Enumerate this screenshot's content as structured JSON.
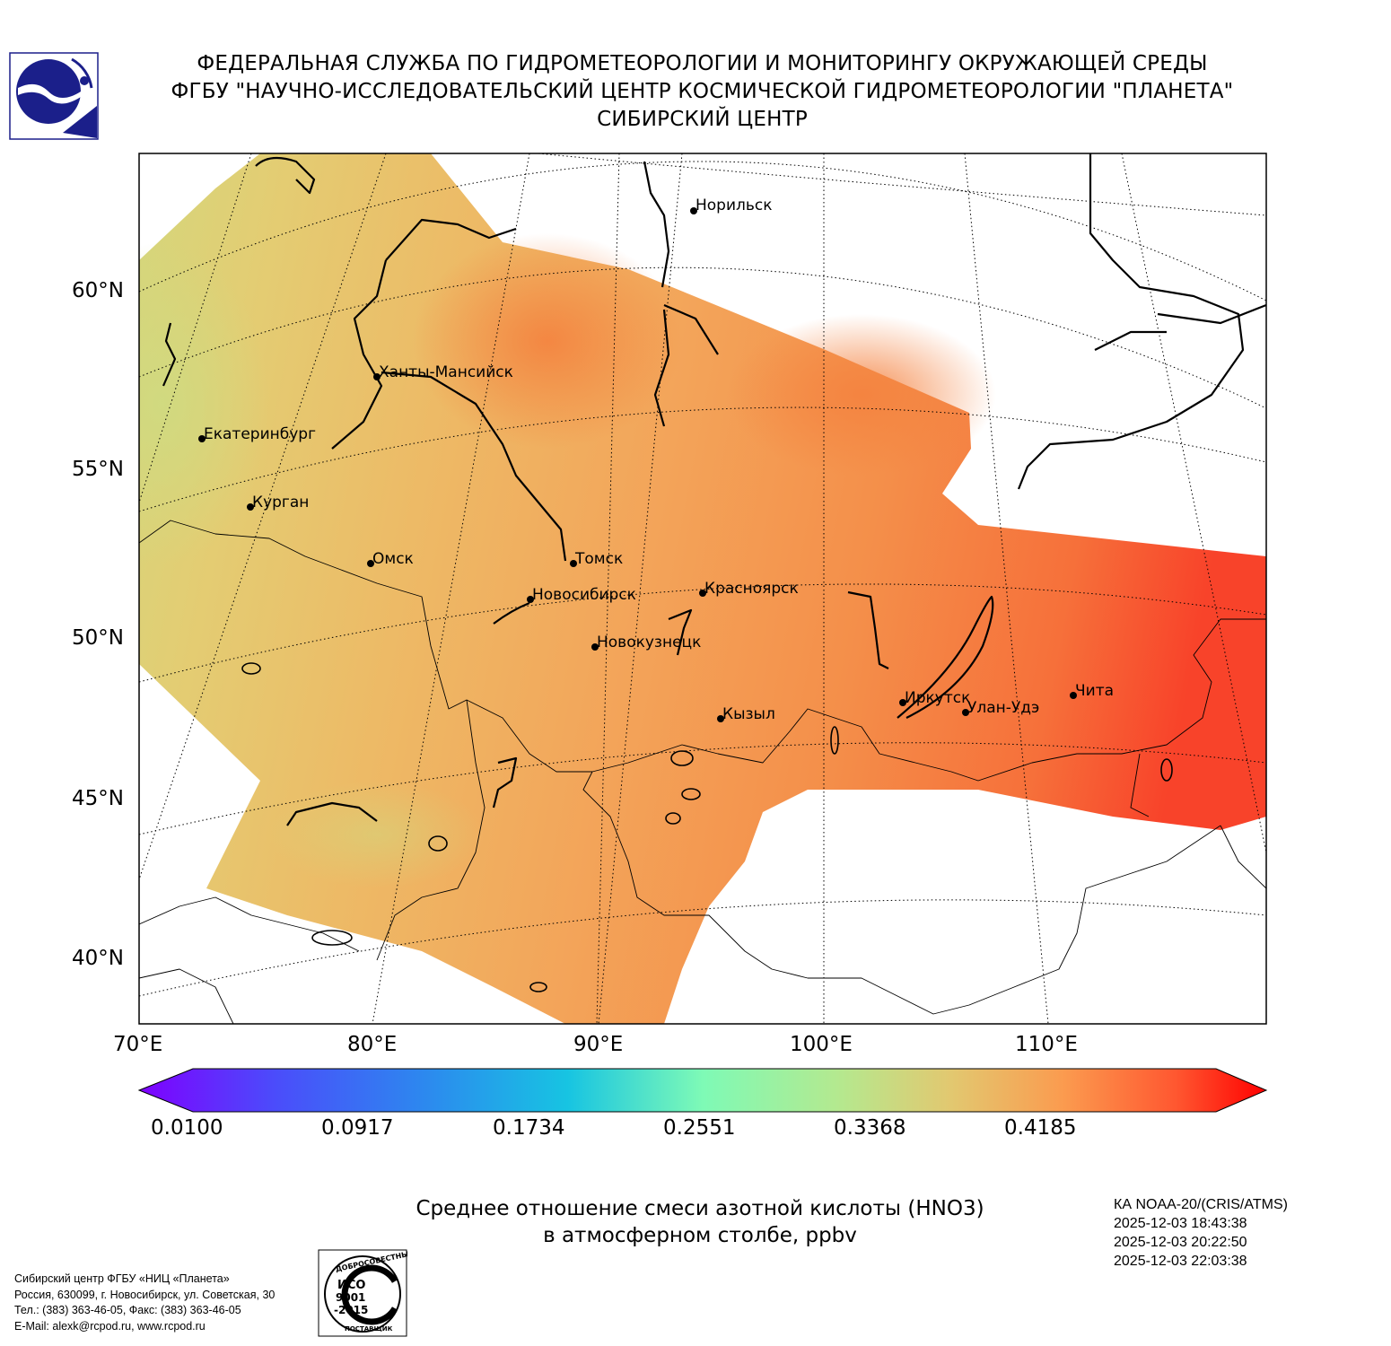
{
  "header": {
    "line1": "ФЕДЕРАЛЬНАЯ СЛУЖБА ПО ГИДРОМЕТЕОРОЛОГИИ И МОНИТОРИНГУ ОКРУЖАЮЩЕЙ СРЕДЫ",
    "line2": "ФГБУ \"НАУЧНО-ИССЛЕДОВАТЕЛЬСКИЙ ЦЕНТР КОСМИЧЕСКОЙ ГИДРОМЕТЕОРОЛОГИИ \"ПЛАНЕТА\"",
    "line3": "СИБИРСКИЙ ЦЕНТР"
  },
  "map": {
    "lat_labels": [
      "60°N",
      "55°N",
      "50°N",
      "45°N",
      "40°N"
    ],
    "lon_labels": [
      "70°E",
      "80°E",
      "90°E",
      "100°E",
      "110°E"
    ],
    "cities": [
      {
        "name": "Норильск"
      },
      {
        "name": "Ханты-Мансийск"
      },
      {
        "name": "Екатеринбург"
      },
      {
        "name": "Курган"
      },
      {
        "name": "Омск"
      },
      {
        "name": "Томск"
      },
      {
        "name": "Новосибирск"
      },
      {
        "name": "Красноярск"
      },
      {
        "name": "Новокузнецк"
      },
      {
        "name": "Кызыл"
      },
      {
        "name": "Иркутск"
      },
      {
        "name": "Улан-Удэ"
      },
      {
        "name": "Чита"
      }
    ],
    "field_colors": {
      "low": "#d9d57a",
      "mid": "#efb060",
      "high": "#f5803f",
      "max": "#f84a28"
    }
  },
  "colorbar": {
    "min": 0.01,
    "max": 0.5002,
    "tick_labels": [
      "0.0100",
      "0.0917",
      "0.1734",
      "0.2551",
      "0.3368",
      "0.4185"
    ]
  },
  "subtitle": {
    "line1": "Среднее отношение смеси азотной кислоты (HNO3)",
    "line2": "в атмосферном столбе, ppbv"
  },
  "satellite": {
    "name": "КА NOAA-20/(CRIS/ATMS)",
    "times": [
      "2025-12-03 18:43:38",
      "2025-12-03 20:22:50",
      "2025-12-03 22:03:38"
    ]
  },
  "footer": {
    "line1": "Сибирский центр ФГБУ «НИЦ «Планета»",
    "line2": "Россия, 630099, г. Новосибирск, ул. Советская, 30",
    "line3": "Тел.: (383) 363-46-05, Факс: (383) 363-46-05",
    "line4": "E-Mail: alexk@rcpod.ru, www.rcpod.ru"
  },
  "iso_badge": {
    "top_text": "ДОБРОСОВЕСТНЫЙ",
    "center_text": [
      "ИСО",
      "9001",
      "-2015"
    ],
    "bottom_text": "ПОСТАВЩИК"
  },
  "icons": {
    "logo": "planeta-logo-icon",
    "iso": "iso-9001-badge-icon"
  }
}
